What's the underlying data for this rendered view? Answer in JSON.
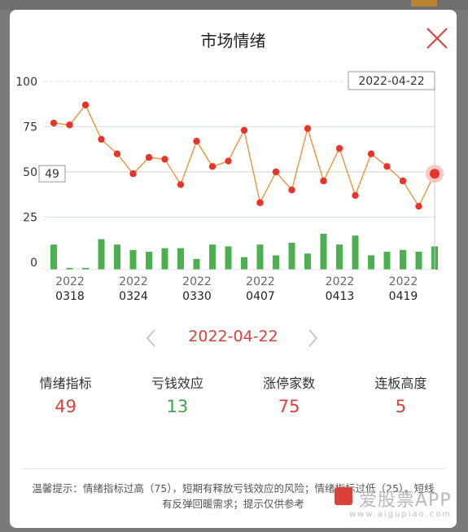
{
  "dialog": {
    "title": "市场情绪"
  },
  "chart_data": {
    "type": "line+bar",
    "y_ticks": [
      "100",
      "75",
      "50",
      "25",
      "0"
    ],
    "ylim": [
      0,
      100
    ],
    "line_series": [
      77,
      76,
      87,
      68,
      60,
      49,
      58,
      57,
      43,
      67,
      53,
      56,
      73,
      33,
      50,
      40,
      74,
      45,
      63,
      37,
      60,
      53,
      45,
      31,
      49
    ],
    "bar_series": [
      14,
      1,
      1,
      17,
      14,
      11,
      10,
      12,
      12,
      6,
      14,
      13,
      7,
      14,
      8,
      15,
      9,
      20,
      14,
      19,
      8,
      10,
      11,
      10,
      13
    ],
    "x_ticks": [
      {
        "index": 0,
        "year": "2022",
        "md": "0318"
      },
      {
        "index": 4,
        "year": "2022",
        "md": "0324"
      },
      {
        "index": 8,
        "year": "2022",
        "md": "0330"
      },
      {
        "index": 12,
        "year": "2022",
        "md": "0407"
      },
      {
        "index": 17,
        "year": "2022",
        "md": "0413"
      },
      {
        "index": 21,
        "year": "2022",
        "md": "0419"
      }
    ],
    "selected_index": 24,
    "selected_value_label": "49",
    "selected_date_label": "2022-04-22",
    "colors": {
      "line": "#f08a2c",
      "dot": "#e8352b",
      "bar": "#4caf50",
      "grid": "#d6e3ea"
    }
  },
  "nav": {
    "date": "2022-04-22"
  },
  "stats": [
    {
      "label": "情绪指标",
      "value": "49",
      "color": "#d9413a"
    },
    {
      "label": "亏钱效应",
      "value": "13",
      "color": "#3ca44a"
    },
    {
      "label": "涨停家数",
      "value": "75",
      "color": "#d9413a"
    },
    {
      "label": "连板高度",
      "value": "5",
      "color": "#d9413a"
    }
  ],
  "tip": "温馨提示：情绪指标过高（75），短期有释放亏钱效应的风险；情绪指标过低（25），短线有反弹回暖需求；提示仅供参考",
  "watermark": {
    "name": "爱股票APP",
    "url": "www.aigupiao.com"
  }
}
